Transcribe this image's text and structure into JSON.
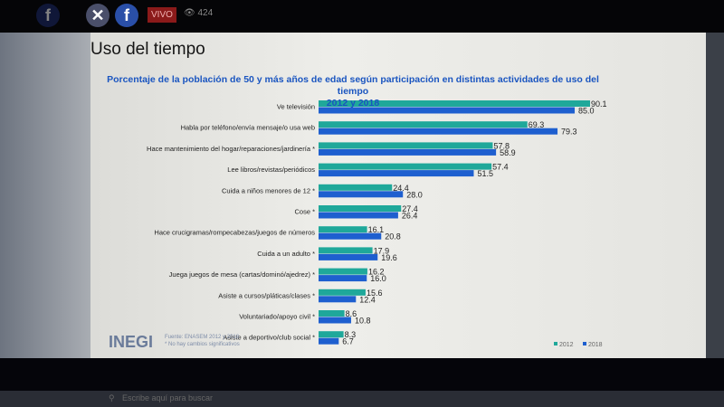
{
  "header": {
    "live_label": "VIVO",
    "views": "424",
    "icons": [
      "facebook-icon",
      "close-icon",
      "facebook-icon",
      "eye-icon"
    ]
  },
  "footer": {
    "logo": "INEGI",
    "source": "Fuente: ENASEM 2012 y 2018",
    "note": "* No hay cambios significativos"
  },
  "taskbar": {
    "search_placeholder": "Escribe aquí para buscar"
  },
  "chart_data": {
    "type": "bar",
    "orientation": "horizontal",
    "title": "Uso del tiempo",
    "subtitle": "Porcentaje de la población de 50 y más años de edad según participación en distintas actividades de uso del tiempo",
    "subtitle2": "2012 y 2018",
    "categories": [
      "Ve televisión",
      "Habla por teléfono/envía mensaje/o usa web",
      "Hace mantenimiento del hogar/reparaciones/jardinería *",
      "Lee libros/revistas/periódicos",
      "Cuida a niños menores de 12 *",
      "Cose *",
      "Hace crucigramas/rompecabezas/juegos de números",
      "Cuida a un adulto *",
      "Juega juegos de mesa (cartas/dominó/ajedrez) *",
      "Asiste a cursos/pláticas/clases *",
      "Voluntariado/apoyo civil *",
      "Asiste a deportivo/club social *"
    ],
    "series": [
      {
        "name": "2012",
        "color": "#1fa89a",
        "values": [
          90.1,
          69.3,
          57.8,
          57.4,
          24.4,
          27.4,
          16.1,
          17.9,
          16.2,
          15.6,
          8.6,
          8.3
        ]
      },
      {
        "name": "2018",
        "color": "#1e5fcf",
        "values": [
          85.0,
          79.3,
          58.9,
          51.5,
          28.0,
          26.4,
          20.8,
          19.6,
          16.0,
          12.4,
          10.8,
          6.7
        ]
      }
    ],
    "xlim": [
      0,
      100
    ],
    "legend": "bottom-right",
    "grid": false
  }
}
